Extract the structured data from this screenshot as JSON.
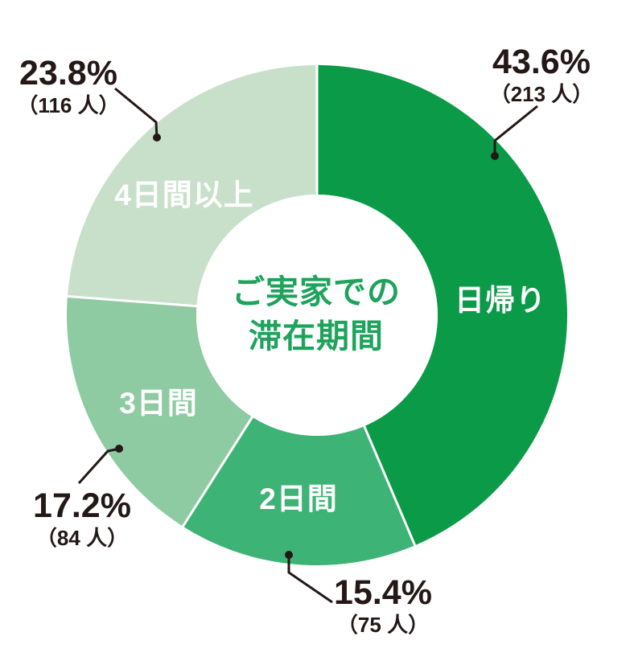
{
  "chart_data": {
    "type": "pie",
    "variant": "donut",
    "title": "ご実家での滞在期間",
    "title_lines": [
      "ご実家での",
      "滞在期間"
    ],
    "start_angle_deg": 0,
    "direction": "clockwise",
    "legend": "none",
    "segments": [
      {
        "label": "日帰り",
        "value_pct": 43.6,
        "count": 213,
        "pct_label": "43.6%",
        "count_label": "（213 人）",
        "color": "#0b9a47"
      },
      {
        "label": "2日間",
        "value_pct": 15.4,
        "count": 75,
        "pct_label": "15.4%",
        "count_label": "（75 人）",
        "color": "#3eb376"
      },
      {
        "label": "3日間",
        "value_pct": 17.2,
        "count": 84,
        "pct_label": "17.2%",
        "count_label": "（84 人）",
        "color": "#8ecaa2"
      },
      {
        "label": "4日間以上",
        "value_pct": 23.8,
        "count": 116,
        "pct_label": "23.8%",
        "count_label": "（116 人）",
        "color": "#c8e0ca"
      }
    ],
    "colors": {
      "title_green": "#1ea35c",
      "text_black": "#231815",
      "divider_white": "#ffffff",
      "background": "#ffffff"
    }
  }
}
